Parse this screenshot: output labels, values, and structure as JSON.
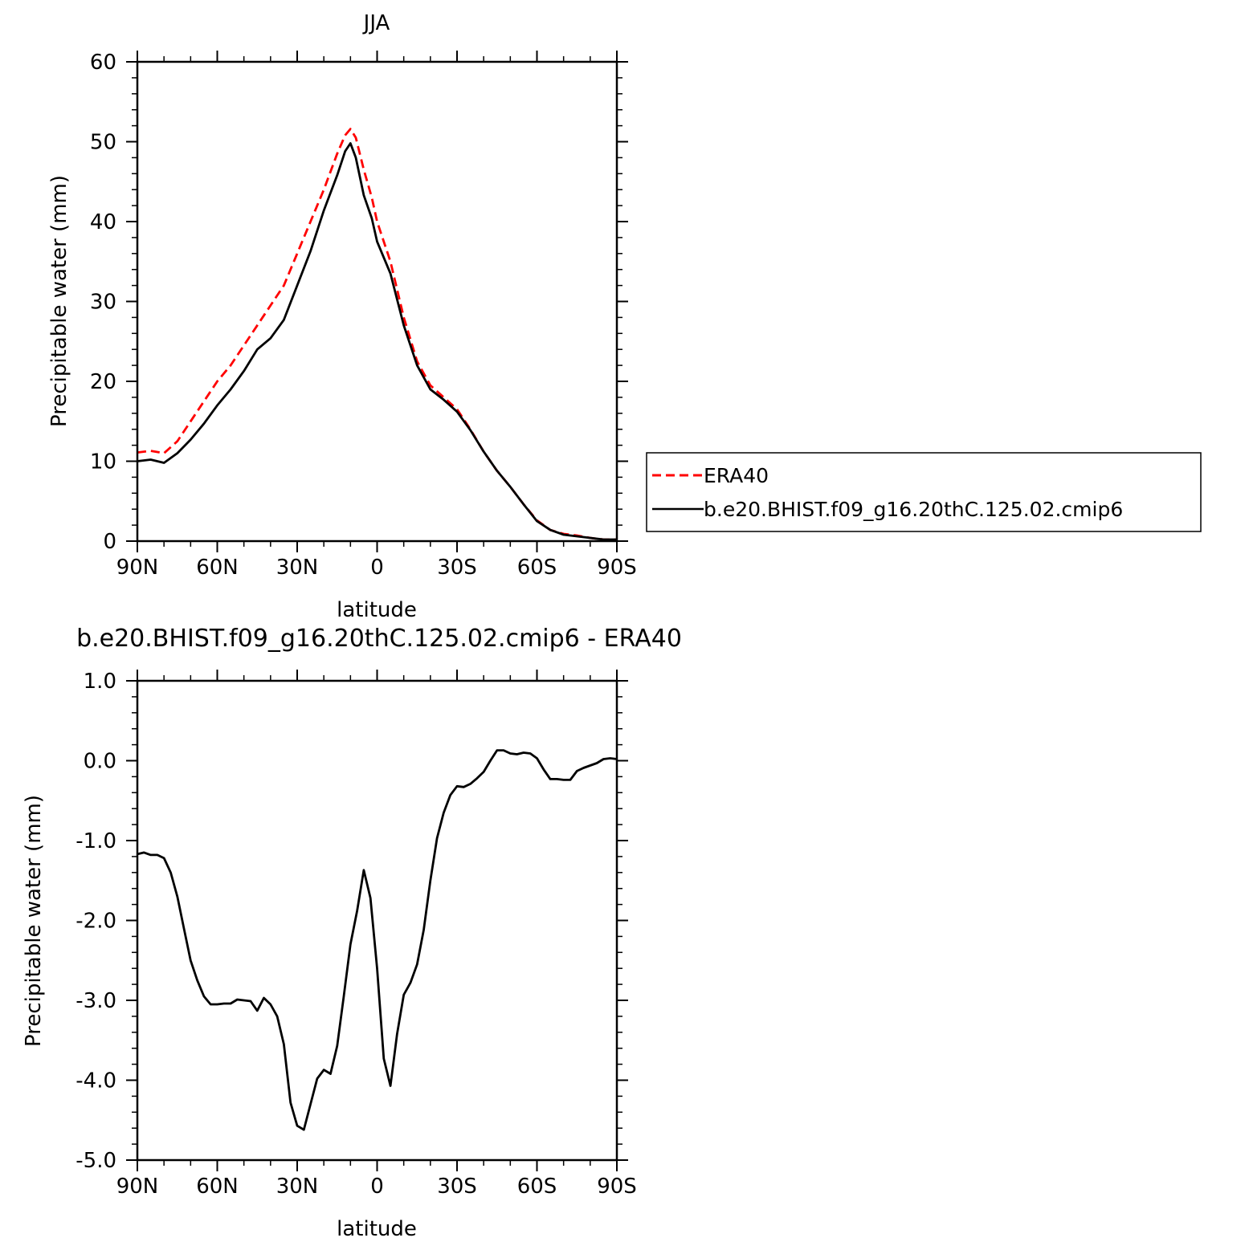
{
  "chart_data": [
    {
      "type": "line",
      "title": "JJA",
      "xlabel": "latitude",
      "ylabel": "Precipitable water (mm)",
      "xlim": [
        90,
        -90
      ],
      "ylim": [
        0,
        60
      ],
      "xticks": [
        90,
        60,
        30,
        0,
        -30,
        -60,
        -90
      ],
      "xticklabels": [
        "90N",
        "60N",
        "30N",
        "0",
        "30S",
        "60S",
        "90S"
      ],
      "yticks": [
        0,
        10,
        20,
        30,
        40,
        50,
        60
      ],
      "yticklabels": [
        "0",
        "10",
        "20",
        "30",
        "40",
        "50",
        "60"
      ],
      "legend": {
        "placement": "right",
        "entries": [
          "ERA40",
          "b.e20.BHIST.f09_g16.20thC.125.02.cmip6"
        ]
      },
      "series": [
        {
          "name": "ERA40",
          "color": "#ff0000",
          "style": "dashed",
          "x": [
            90,
            85,
            80,
            75,
            70,
            65,
            60,
            55,
            50,
            45,
            40,
            35,
            30,
            25,
            20,
            15,
            12,
            10,
            8,
            5,
            2,
            0,
            -5,
            -10,
            -15,
            -20,
            -25,
            -30,
            -35,
            -40,
            -45,
            -50,
            -55,
            -60,
            -65,
            -70,
            -75,
            -80,
            -85,
            -90
          ],
          "y": [
            11.1,
            11.3,
            11.0,
            12.5,
            15.0,
            17.5,
            20.0,
            22.0,
            24.5,
            27.0,
            29.5,
            32.0,
            36.0,
            40.0,
            44.0,
            48.5,
            50.8,
            51.6,
            50.5,
            46.5,
            43.0,
            40.0,
            35.0,
            28.0,
            22.5,
            19.5,
            18.0,
            16.5,
            14.0,
            11.2,
            8.8,
            6.8,
            4.6,
            2.6,
            1.4,
            0.9,
            0.7,
            0.4,
            0.2,
            0.2
          ]
        },
        {
          "name": "b.e20.BHIST.f09_g16.20thC.125.02.cmip6",
          "color": "#000000",
          "style": "solid",
          "x": [
            90,
            85,
            80,
            75,
            70,
            65,
            60,
            55,
            50,
            45,
            40,
            35,
            30,
            25,
            20,
            15,
            12,
            10,
            8,
            5,
            2,
            0,
            -5,
            -10,
            -15,
            -20,
            -25,
            -30,
            -35,
            -40,
            -45,
            -50,
            -55,
            -60,
            -65,
            -70,
            -75,
            -80,
            -85,
            -90
          ],
          "y": [
            10.0,
            10.2,
            9.8,
            11.0,
            12.7,
            14.7,
            17.0,
            19.0,
            21.3,
            24.0,
            25.4,
            27.7,
            32.0,
            36.3,
            41.4,
            45.8,
            48.8,
            49.8,
            48.0,
            43.3,
            40.4,
            37.5,
            33.5,
            27.0,
            22.0,
            19.0,
            17.7,
            16.2,
            13.9,
            11.2,
            8.8,
            6.8,
            4.6,
            2.5,
            1.4,
            0.8,
            0.6,
            0.4,
            0.2,
            0.2
          ]
        }
      ]
    },
    {
      "type": "line",
      "title": "b.e20.BHIST.f09_g16.20thC.125.02.cmip6 - ERA40",
      "xlabel": "latitude",
      "ylabel": "Precipitable water (mm)",
      "xlim": [
        90,
        -90
      ],
      "ylim": [
        -5.0,
        1.0
      ],
      "xticks": [
        90,
        60,
        30,
        0,
        -30,
        -60,
        -90
      ],
      "xticklabels": [
        "90N",
        "60N",
        "30N",
        "0",
        "30S",
        "60S",
        "90S"
      ],
      "yticks": [
        1.0,
        0.0,
        -1.0,
        -2.0,
        -3.0,
        -4.0,
        -5.0
      ],
      "yticklabels": [
        "1.0",
        "0.0",
        "-1.0",
        "-2.0",
        "-3.0",
        "-4.0",
        "-5.0"
      ],
      "series": [
        {
          "color": "#000000",
          "style": "solid",
          "x": [
            90,
            87.5,
            85,
            82.5,
            80,
            77.5,
            75,
            72.5,
            70,
            67.5,
            65,
            62.5,
            60,
            57.5,
            55,
            52.5,
            50,
            47.5,
            45,
            42.5,
            40,
            37.5,
            35,
            32.5,
            30,
            27.5,
            25,
            22.5,
            20,
            17.5,
            15,
            12.5,
            10,
            7.5,
            5,
            2.5,
            0,
            -2.5,
            -5,
            -7.5,
            -10,
            -12.5,
            -15,
            -17.5,
            -20,
            -22.5,
            -25,
            -27.5,
            -30,
            -32.5,
            -35,
            -37.5,
            -40,
            -42.5,
            -45,
            -47.5,
            -50,
            -52.5,
            -55,
            -57.5,
            -60,
            -62.5,
            -65,
            -67.5,
            -70,
            -72.5,
            -75,
            -77.5,
            -80,
            -82.5,
            -85,
            -87.5,
            -90
          ],
          "y": [
            -1.17,
            -1.15,
            -1.18,
            -1.18,
            -1.22,
            -1.4,
            -1.7,
            -2.1,
            -2.5,
            -2.75,
            -2.95,
            -3.05,
            -3.05,
            -3.04,
            -3.04,
            -2.99,
            -3.0,
            -3.01,
            -3.13,
            -2.97,
            -3.05,
            -3.2,
            -3.55,
            -4.28,
            -4.57,
            -4.62,
            -4.3,
            -3.98,
            -3.87,
            -3.92,
            -3.57,
            -2.95,
            -2.3,
            -1.88,
            -1.37,
            -1.72,
            -2.6,
            -3.73,
            -4.07,
            -3.42,
            -2.93,
            -2.78,
            -2.55,
            -2.12,
            -1.5,
            -0.97,
            -0.65,
            -0.43,
            -0.32,
            -0.33,
            -0.29,
            -0.22,
            -0.14,
            0.0,
            0.13,
            0.13,
            0.09,
            0.08,
            0.1,
            0.09,
            0.03,
            -0.11,
            -0.23,
            -0.23,
            -0.24,
            -0.24,
            -0.13,
            -0.09,
            -0.06,
            -0.03,
            0.02,
            0.03,
            0.02
          ]
        }
      ]
    }
  ]
}
